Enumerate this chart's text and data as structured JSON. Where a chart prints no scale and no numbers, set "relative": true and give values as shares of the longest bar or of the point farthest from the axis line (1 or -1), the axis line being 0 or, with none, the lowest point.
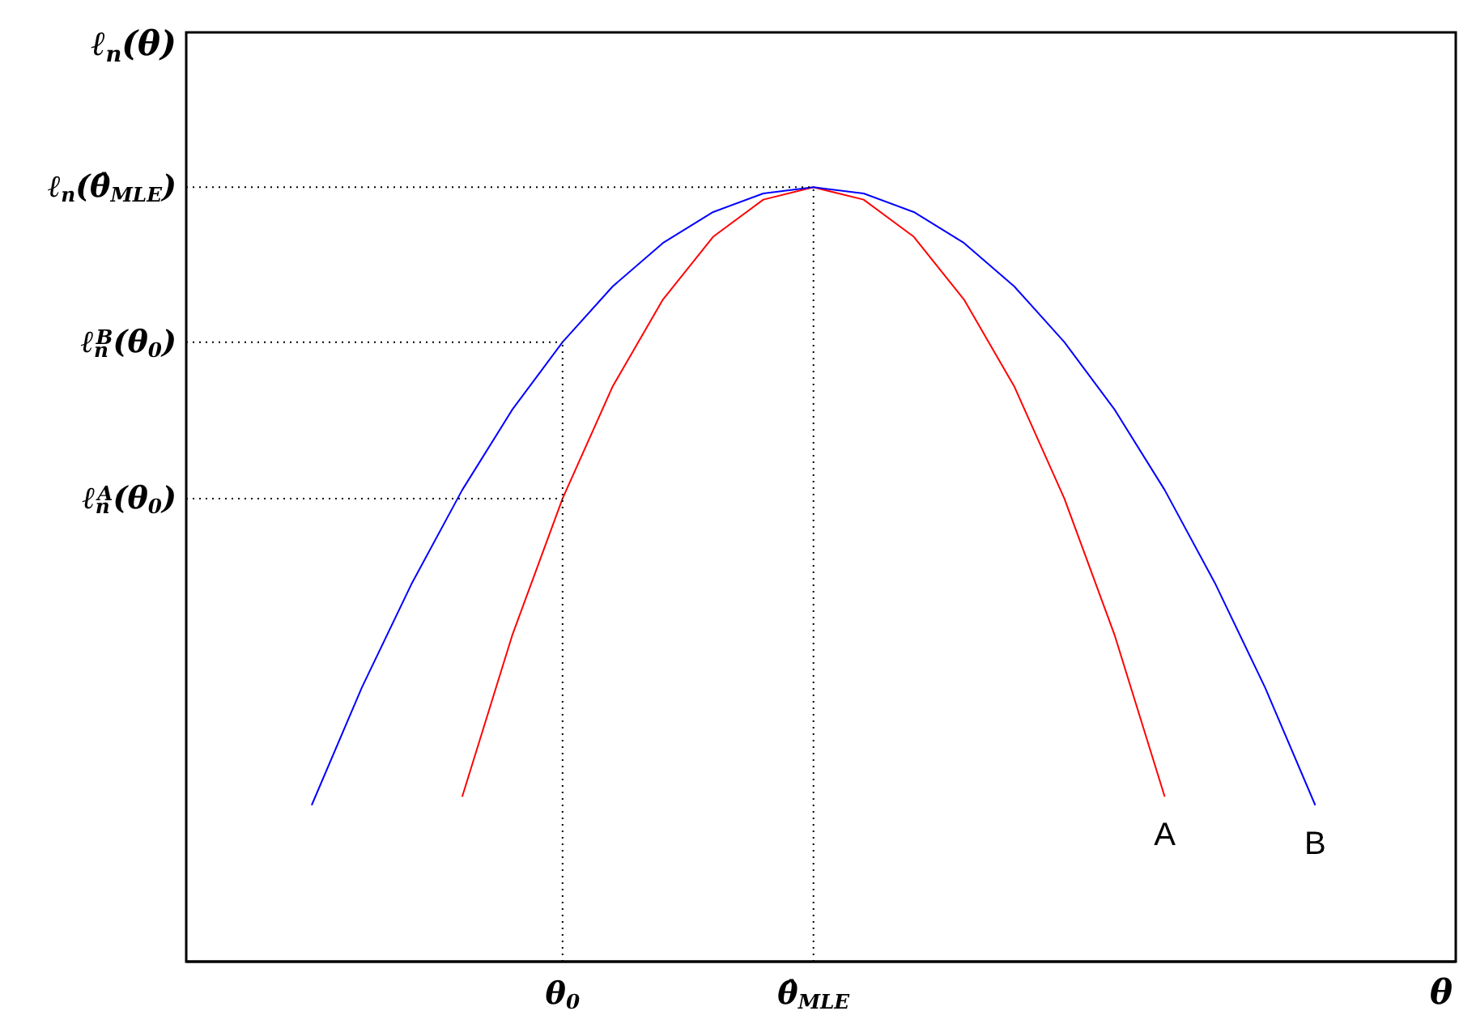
{
  "chart_data": {
    "type": "line",
    "relative": true,
    "xlabel": "θ",
    "ylabel": "ℓ$_{n}$(θ)",
    "legend": false,
    "grid": "x",
    "marker": "none",
    "line_style": "solid",
    "categories": [
      null,
      null,
      null,
      null,
      null,
      "θ$_{0}$",
      null,
      null,
      null,
      null,
      "θ̂$_{MLE}$",
      null,
      null,
      null,
      null,
      null,
      null,
      null,
      null,
      null,
      null
    ],
    "series": [
      {
        "name": "A",
        "color": "#ff0000",
        "values": [
          null,
          null,
          null,
          0.213,
          0.422,
          0.598,
          0.743,
          0.855,
          0.936,
          0.984,
          1,
          0.984,
          0.936,
          0.855,
          0.743,
          0.598,
          0.422,
          0.213,
          null,
          null,
          null
        ]
      },
      {
        "name": "B",
        "color": "#0000ff",
        "values": [
          0.202,
          0.354,
          0.489,
          0.609,
          0.713,
          0.8,
          0.872,
          0.928,
          0.968,
          0.992,
          1,
          0.992,
          0.968,
          0.928,
          0.872,
          0.8,
          0.713,
          0.609,
          0.489,
          0.354,
          0.202
        ]
      }
    ],
    "annotations": [
      {
        "text": "ℓ$_{n}$(θ̂$_{MLE}$)",
        "x": "θ̂$_{MLE}$",
        "y": 1
      },
      {
        "text": "ℓ$_{n}$$^{B}$(θ$_{0}$)",
        "x": "θ$_{0}$",
        "y": 0.8
      },
      {
        "text": "ℓ$_{n}$$^{A}$(θ$_{0}$)",
        "x": "θ$_{0}$",
        "y": 0.598
      }
    ]
  }
}
